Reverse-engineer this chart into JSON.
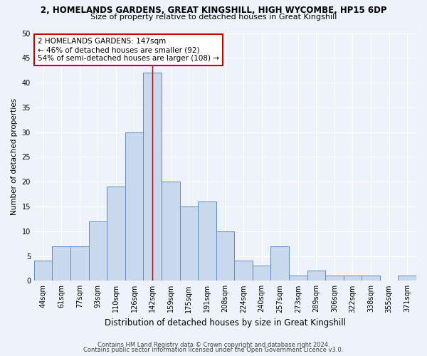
{
  "title1": "2, HOMELANDS GARDENS, GREAT KINGSHILL, HIGH WYCOMBE, HP15 6DP",
  "title2": "Size of property relative to detached houses in Great Kingshill",
  "xlabel": "Distribution of detached houses by size in Great Kingshill",
  "ylabel": "Number of detached properties",
  "categories": [
    "44sqm",
    "61sqm",
    "77sqm",
    "93sqm",
    "110sqm",
    "126sqm",
    "142sqm",
    "159sqm",
    "175sqm",
    "191sqm",
    "208sqm",
    "224sqm",
    "240sqm",
    "257sqm",
    "273sqm",
    "289sqm",
    "306sqm",
    "322sqm",
    "338sqm",
    "355sqm",
    "371sqm"
  ],
  "values": [
    4,
    7,
    7,
    12,
    19,
    30,
    42,
    20,
    15,
    16,
    10,
    4,
    3,
    7,
    1,
    2,
    1,
    1,
    1,
    0,
    1
  ],
  "bar_color": "#c8d9ee",
  "bar_edge_color": "#5b8dc8",
  "highlight_index": 6,
  "highlight_line_color": "#cc0000",
  "annotation_text": "2 HOMELANDS GARDENS: 147sqm\n← 46% of detached houses are smaller (92)\n54% of semi-detached houses are larger (108) →",
  "annotation_box_facecolor": "#ffffff",
  "annotation_box_edgecolor": "#cc0000",
  "ylim": [
    0,
    50
  ],
  "yticks": [
    0,
    5,
    10,
    15,
    20,
    25,
    30,
    35,
    40,
    45,
    50
  ],
  "footer1": "Contains HM Land Registry data © Crown copyright and database right 2024.",
  "footer2": "Contains public sector information licensed under the Open Government Licence v3.0.",
  "background_color": "#eef2fb",
  "grid_color": "#ffffff",
  "title1_fontsize": 8.5,
  "title2_fontsize": 8.0,
  "xlabel_fontsize": 8.5,
  "ylabel_fontsize": 7.5,
  "tick_fontsize": 7.0,
  "annot_fontsize": 7.5,
  "footer_fontsize": 6.0
}
